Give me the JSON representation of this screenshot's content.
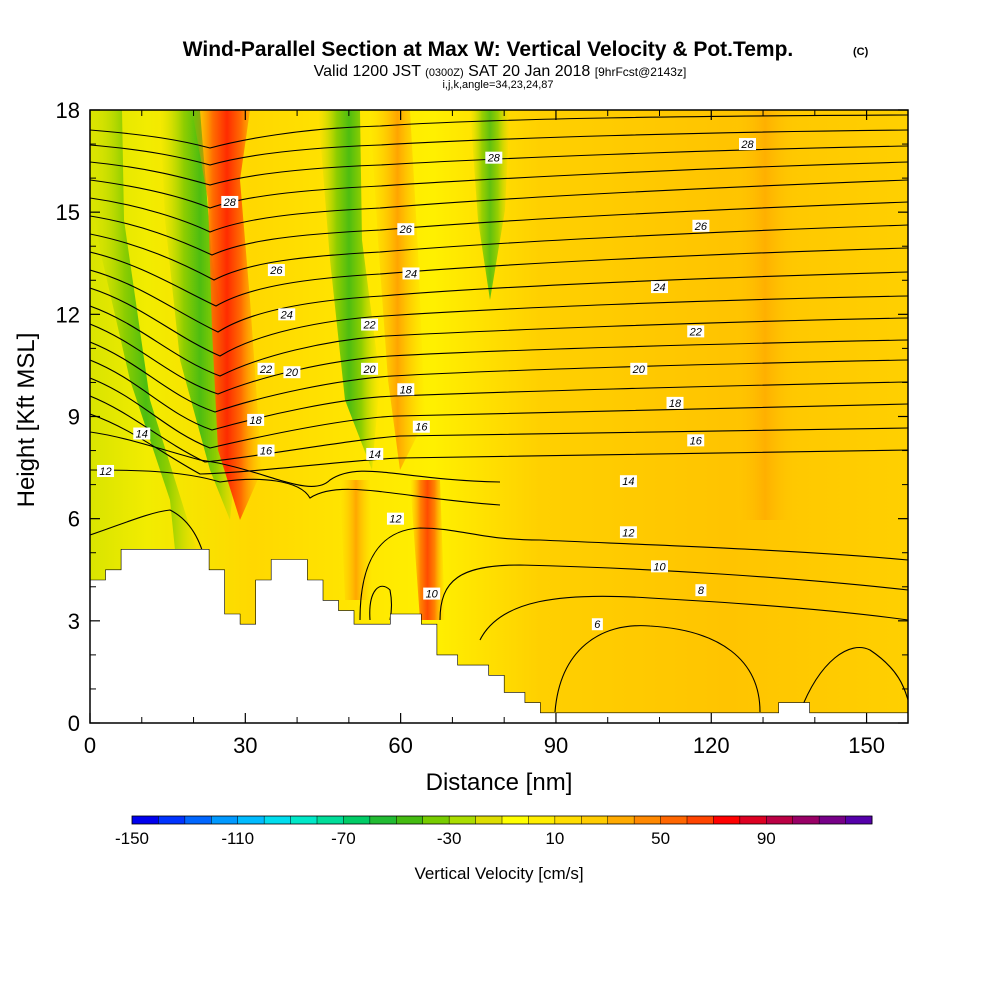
{
  "chart_data": {
    "type": "heatmap",
    "title": "Wind-Parallel Section at Max W: Vertical Velocity & Pot.Temp.",
    "title_mark": "(C)",
    "subtitle": {
      "valid_prefix": "Valid 1200 JST",
      "zulu": "(0300Z)",
      "date": "SAT 20 Jan 2018",
      "forecast": "[9hrFcst@2143z]"
    },
    "subtitle2": "i,j,k,angle=34,23,24,87",
    "xlabel": "Distance [nm]",
    "ylabel": "Height [Kft MSL]",
    "xlim": [
      0,
      158
    ],
    "ylim": [
      0,
      18
    ],
    "xticks": [
      "0",
      "30",
      "60",
      "90",
      "120",
      "150"
    ],
    "yticks": [
      "0",
      "3",
      "6",
      "9",
      "12",
      "15",
      "18"
    ],
    "colorbar": {
      "label": "Vertical Velocity [cm/s]",
      "min": -150,
      "max": 130,
      "step": 10,
      "tick_labels": [
        "-150",
        "-110",
        "-70",
        "-30",
        "10",
        "50",
        "90"
      ],
      "tick_values": [
        -150,
        -110,
        -70,
        -30,
        10,
        50,
        90
      ],
      "colors": [
        "#0000ee",
        "#0033ff",
        "#0066ff",
        "#0099ff",
        "#00bbff",
        "#00ddee",
        "#00e8c8",
        "#00dd99",
        "#00cc66",
        "#22bb33",
        "#44bb11",
        "#77cc00",
        "#aadd00",
        "#dddd00",
        "#ffff00",
        "#ffee00",
        "#ffdd00",
        "#ffcc00",
        "#ffaa00",
        "#ff8800",
        "#ff6600",
        "#ff4400",
        "#ff0000",
        "#dd0022",
        "#bb0044",
        "#990066",
        "#770088",
        "#5500aa"
      ]
    },
    "contours": {
      "variable": "Potential temperature",
      "labels": [
        {
          "text": "28",
          "x": 27,
          "y": 15.3
        },
        {
          "text": "28",
          "x": 78,
          "y": 16.6
        },
        {
          "text": "28",
          "x": 127,
          "y": 17.0
        },
        {
          "text": "26",
          "x": 36,
          "y": 13.3
        },
        {
          "text": "26",
          "x": 61,
          "y": 14.5
        },
        {
          "text": "26",
          "x": 118,
          "y": 14.6
        },
        {
          "text": "24",
          "x": 38,
          "y": 12.0
        },
        {
          "text": "24",
          "x": 62,
          "y": 13.2
        },
        {
          "text": "24",
          "x": 110,
          "y": 12.8
        },
        {
          "text": "22",
          "x": 34,
          "y": 10.4
        },
        {
          "text": "22",
          "x": 54,
          "y": 11.7
        },
        {
          "text": "22",
          "x": 117,
          "y": 11.5
        },
        {
          "text": "20",
          "x": 39,
          "y": 10.3
        },
        {
          "text": "20",
          "x": 54,
          "y": 10.4
        },
        {
          "text": "20",
          "x": 106,
          "y": 10.4
        },
        {
          "text": "18",
          "x": 32,
          "y": 8.9
        },
        {
          "text": "18",
          "x": 61,
          "y": 9.8
        },
        {
          "text": "18",
          "x": 113,
          "y": 9.4
        },
        {
          "text": "16",
          "x": 34,
          "y": 8.0
        },
        {
          "text": "16",
          "x": 64,
          "y": 8.7
        },
        {
          "text": "16",
          "x": 117,
          "y": 8.3
        },
        {
          "text": "14",
          "x": 10,
          "y": 8.5
        },
        {
          "text": "14",
          "x": 55,
          "y": 7.9
        },
        {
          "text": "14",
          "x": 104,
          "y": 7.1
        },
        {
          "text": "12",
          "x": 3,
          "y": 7.4
        },
        {
          "text": "12",
          "x": 59,
          "y": 6.0
        },
        {
          "text": "12",
          "x": 104,
          "y": 5.6
        },
        {
          "text": "10",
          "x": 66,
          "y": 3.8
        },
        {
          "text": "10",
          "x": 110,
          "y": 4.6
        },
        {
          "text": "8",
          "x": 118,
          "y": 3.9
        },
        {
          "text": "6",
          "x": 98,
          "y": 2.9
        }
      ]
    },
    "terrain": [
      [
        0,
        4.2
      ],
      [
        3,
        4.2
      ],
      [
        3,
        4.5
      ],
      [
        6,
        4.5
      ],
      [
        6,
        5.1
      ],
      [
        23,
        5.1
      ],
      [
        23,
        4.5
      ],
      [
        26,
        4.5
      ],
      [
        26,
        3.2
      ],
      [
        29,
        3.2
      ],
      [
        29,
        2.9
      ],
      [
        32,
        2.9
      ],
      [
        32,
        4.2
      ],
      [
        35,
        4.2
      ],
      [
        35,
        4.8
      ],
      [
        42,
        4.8
      ],
      [
        42,
        4.2
      ],
      [
        45,
        4.2
      ],
      [
        45,
        3.6
      ],
      [
        48,
        3.6
      ],
      [
        48,
        3.3
      ],
      [
        51,
        3.3
      ],
      [
        51,
        2.9
      ],
      [
        58,
        2.9
      ],
      [
        58,
        3.2
      ],
      [
        64,
        3.2
      ],
      [
        64,
        2.9
      ],
      [
        67,
        2.9
      ],
      [
        67,
        2.0
      ],
      [
        71,
        2.0
      ],
      [
        71,
        1.7
      ],
      [
        77,
        1.7
      ],
      [
        77,
        1.4
      ],
      [
        80,
        1.4
      ],
      [
        80,
        0.9
      ],
      [
        84,
        0.9
      ],
      [
        84,
        0.6
      ],
      [
        87,
        0.6
      ],
      [
        87,
        0.3
      ],
      [
        133,
        0.3
      ],
      [
        133,
        0.6
      ],
      [
        139,
        0.6
      ],
      [
        139,
        0.3
      ],
      [
        158,
        0.3
      ]
    ]
  }
}
